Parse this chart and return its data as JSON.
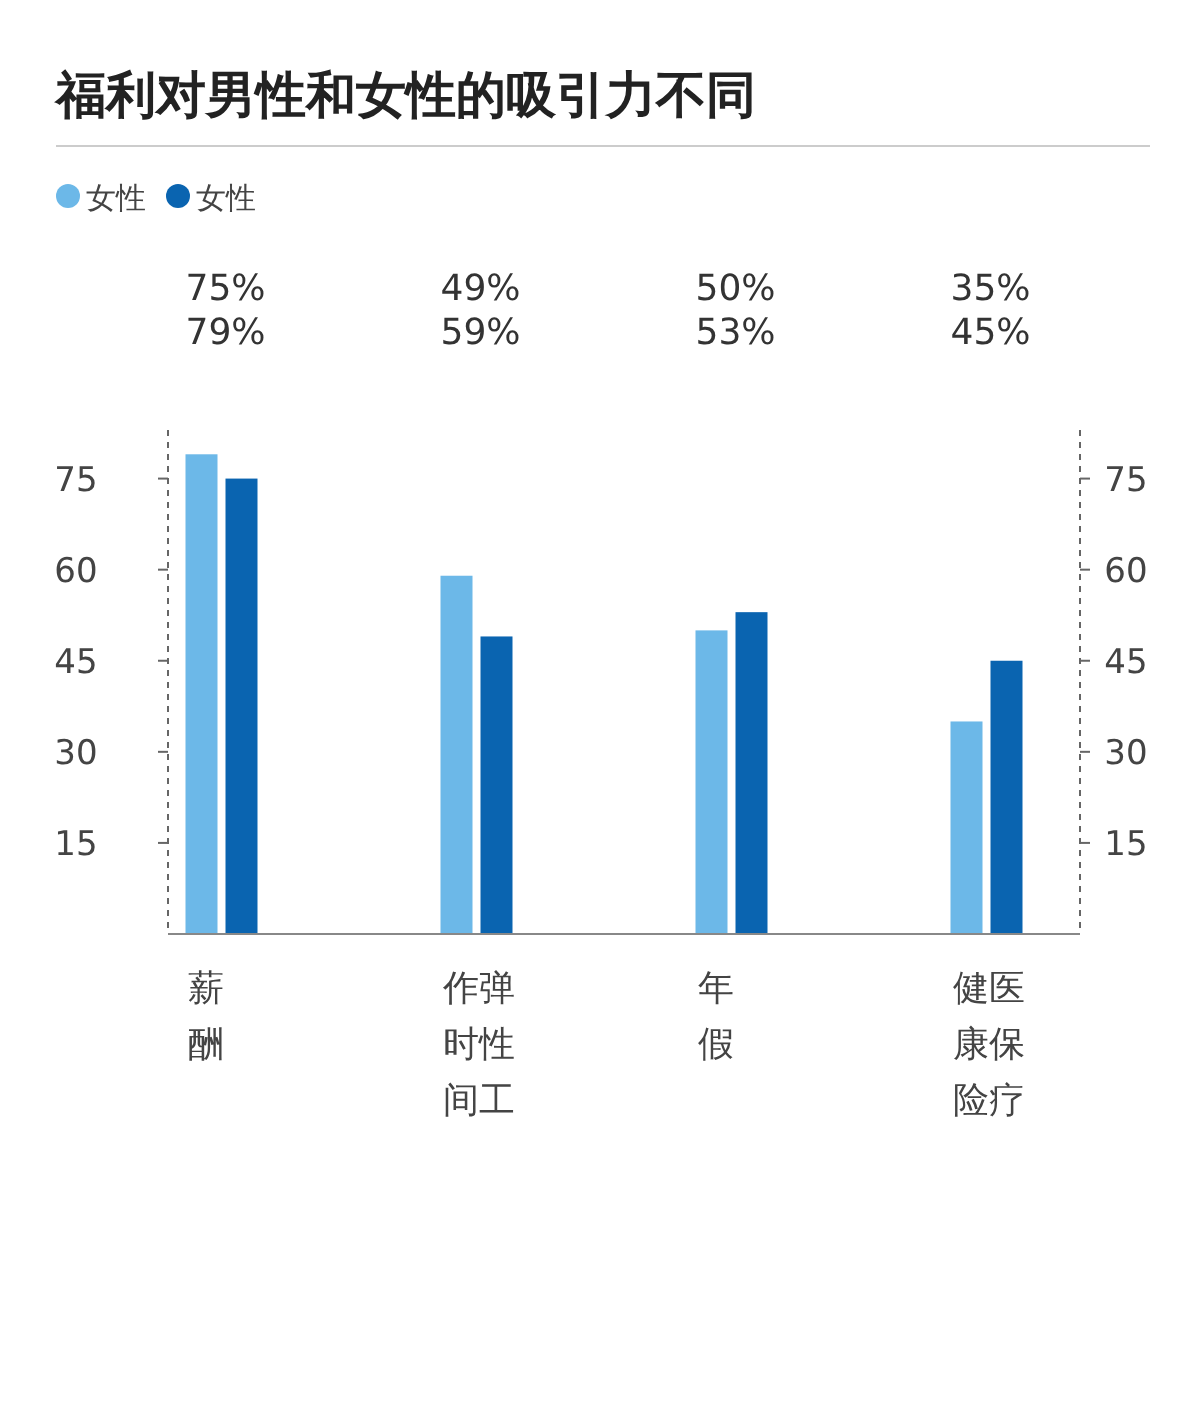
{
  "chart_data": {
    "type": "bar",
    "title": "福利对男性和女性的吸引力不同",
    "categories": [
      "薪酬",
      "作弹时性间工",
      "年假",
      "健医康保险疗"
    ],
    "annotations": [
      "75%",
      "79%",
      "49%",
      "59%",
      "50%",
      "53%",
      "35%",
      "45%"
    ],
    "series": [
      {
        "name": "女性",
        "color": "#6cb8e8",
        "values": [
          79,
          59,
          50,
          35
        ]
      },
      {
        "name": "女性",
        "color": "#0a64b0",
        "values": [
          75,
          49,
          53,
          45
        ]
      }
    ],
    "ylim": [
      0,
      83
    ],
    "yticks": [
      15,
      30,
      45,
      60,
      75
    ],
    "y2lim": [
      0,
      83
    ],
    "y2ticks": [
      15,
      30,
      45,
      60,
      75
    ],
    "legend": "top left"
  }
}
